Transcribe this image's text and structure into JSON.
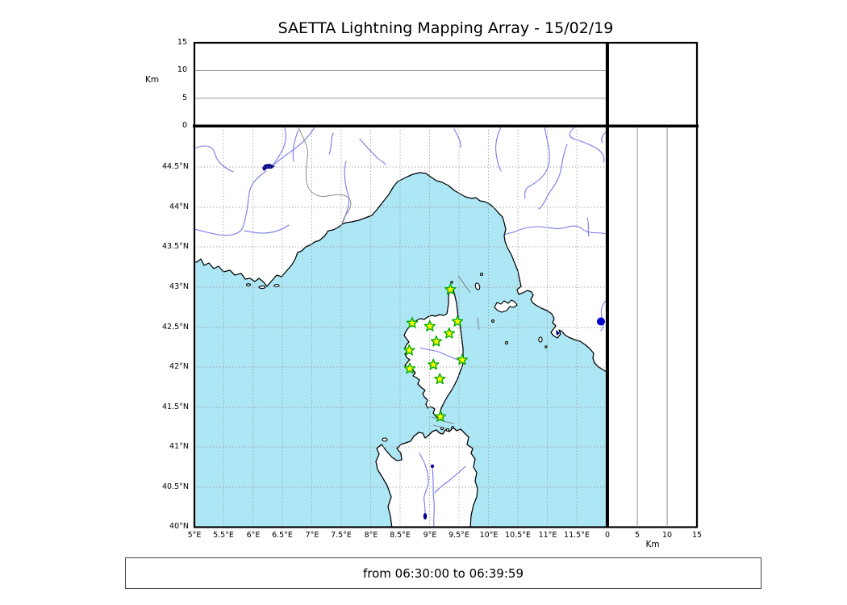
{
  "title": "SAETTA Lightning Mapping Array - 15/02/19",
  "caption": "from 06:30:00 to 06:39:59",
  "axes": {
    "alt_label": "Km",
    "alt_ticks": [
      "15",
      "10",
      "5",
      "0"
    ],
    "lat_ticks": [
      "44.5°N",
      "44°N",
      "43.5°N",
      "43°N",
      "42.5°N",
      "42°N",
      "41.5°N",
      "41°N",
      "40.5°N",
      "40°N"
    ],
    "lon_ticks": [
      "5°E",
      "5.5°E",
      "6°E",
      "6.5°E",
      "7°E",
      "7.5°E",
      "8°E",
      "8.5°E",
      "9°E",
      "9.5°E",
      "10°E",
      "10.5°E",
      "11°E",
      "11.5°E"
    ],
    "km_ticks": [
      "0",
      "5",
      "10",
      "15"
    ],
    "km_label": "Km"
  },
  "colors": {
    "sea": "#ADE6F4",
    "land": "#FFFFFF",
    "coast": "#000000",
    "river": "#7878EC",
    "lake": "#00008B",
    "country_border": "#808080",
    "grid_dotted": "#999999",
    "grid_solid": "#888888",
    "station_fill": "#FFFF00",
    "station_edge": "#00AD00",
    "source_dot": "#0000CC"
  },
  "chart_data": {
    "type": "scatter",
    "title": "SAETTA Lightning Mapping Array - 15/02/19",
    "caption": "from 06:30:00 to 06:39:59",
    "panels": [
      {
        "id": "altitude-vs-longitude",
        "position": "top",
        "ylabel": "Km",
        "ylim": [
          0,
          15
        ],
        "yticks": [
          0,
          5,
          10,
          15
        ],
        "xlim_deg_e": [
          5,
          12
        ],
        "grid": "solid horizontal at 5 and 10 km",
        "points": []
      },
      {
        "id": "map",
        "position": "main",
        "xlim_deg_e": [
          5,
          12
        ],
        "ylim_deg_n": [
          40,
          45
        ],
        "xtick_step_deg": 0.5,
        "ytick_step_deg": 0.5,
        "grid": "dotted every 0.5 degree",
        "features": [
          "France-Italy coastline",
          "Corsica",
          "Sardinia",
          "Elba and Tuscan islands",
          "rivers",
          "lakes"
        ]
      },
      {
        "id": "altitude-vs-latitude",
        "position": "right",
        "xlabel": "Km",
        "xlim": [
          0,
          15
        ],
        "xticks": [
          0,
          5,
          10,
          15
        ],
        "grid": "solid vertical at 5 and 10 km",
        "points": []
      }
    ],
    "stations": [
      {
        "lon": 9.36,
        "lat": 42.97
      },
      {
        "lon": 8.71,
        "lat": 42.55
      },
      {
        "lon": 9.01,
        "lat": 42.51
      },
      {
        "lon": 9.48,
        "lat": 42.57
      },
      {
        "lon": 9.34,
        "lat": 42.42
      },
      {
        "lon": 9.12,
        "lat": 42.32
      },
      {
        "lon": 8.66,
        "lat": 42.21
      },
      {
        "lon": 9.56,
        "lat": 42.09
      },
      {
        "lon": 9.07,
        "lat": 42.03
      },
      {
        "lon": 8.67,
        "lat": 41.98
      },
      {
        "lon": 9.18,
        "lat": 41.85
      },
      {
        "lon": 9.19,
        "lat": 41.38
      }
    ],
    "sources": [
      {
        "lon": 11.92,
        "lat": 42.57
      }
    ]
  }
}
